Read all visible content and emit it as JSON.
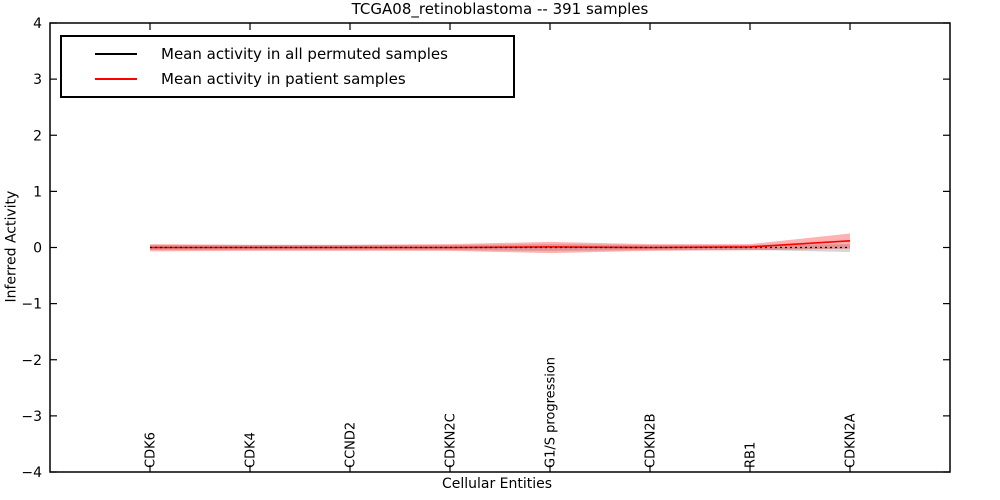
{
  "chart_data": {
    "type": "line",
    "title": "TCGA08_retinoblastoma -- 391 samples",
    "xlabel": "Cellular Entities",
    "ylabel": "Inferred Activity",
    "ylim": [
      -4,
      4
    ],
    "yticks": [
      "4",
      "3",
      "2",
      "1",
      "0",
      "−1",
      "−2",
      "−3",
      "−4"
    ],
    "ytick_values": [
      4,
      3,
      2,
      1,
      0,
      -1,
      -2,
      -3,
      -4
    ],
    "grid": false,
    "legend_position": "upper left",
    "categories": [
      "CDK6",
      "CDK4",
      "CCND2",
      "CDKN2C",
      "G1/S progression",
      "CDKN2B",
      "RB1",
      "CDKN2A"
    ],
    "series": [
      {
        "name": "Mean activity in all permuted samples",
        "color": "#000000",
        "line_style": "dotted",
        "values": [
          0,
          0,
          0,
          0,
          0,
          0,
          0,
          0
        ],
        "band_upper": [
          0.045,
          0.045,
          0.045,
          0.045,
          0.06,
          0.045,
          0.045,
          0.06
        ],
        "band_lower": [
          -0.045,
          -0.045,
          -0.045,
          -0.045,
          -0.06,
          -0.045,
          -0.045,
          -0.08
        ],
        "band_color": "#888888",
        "band_opacity": 0.35
      },
      {
        "name": "Mean activity in patient samples",
        "color": "#ff0000",
        "line_style": "solid",
        "values": [
          0,
          0,
          0,
          0,
          0.01,
          0,
          0.01,
          0.12
        ],
        "band_upper": [
          0.06,
          0.05,
          0.05,
          0.06,
          0.1,
          0.06,
          0.06,
          0.25
        ],
        "band_lower": [
          -0.07,
          -0.06,
          -0.06,
          -0.06,
          -0.1,
          -0.06,
          -0.05,
          -0.02
        ],
        "band_color": "#ff0000",
        "band_opacity": 0.3
      }
    ]
  }
}
